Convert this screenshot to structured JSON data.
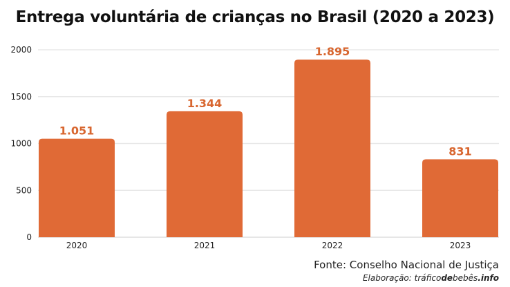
{
  "chart_data": {
    "type": "bar",
    "title": "Entrega voluntária de crianças no Brasil (2020 a 2023)",
    "categories": [
      "2020",
      "2021",
      "2022",
      "2023"
    ],
    "values": [
      1051,
      1344,
      1895,
      831
    ],
    "data_labels": [
      "1.051",
      "1.344",
      "1.895",
      "831"
    ],
    "xlabel": "",
    "ylabel": "",
    "ylim": [
      0,
      2000
    ],
    "yticks": [
      "0",
      "500",
      "1000",
      "1500",
      "2000"
    ],
    "grid": true,
    "bar_color": "#e06a36",
    "label_color": "#d8662f"
  },
  "footer": {
    "source": "Fonte: Conselho  Nacional de Justiça",
    "credit_prefix": "Elaboração: tráfico",
    "credit_bold1": "de",
    "credit_mid": "bebês",
    "credit_bold2": ".info"
  }
}
